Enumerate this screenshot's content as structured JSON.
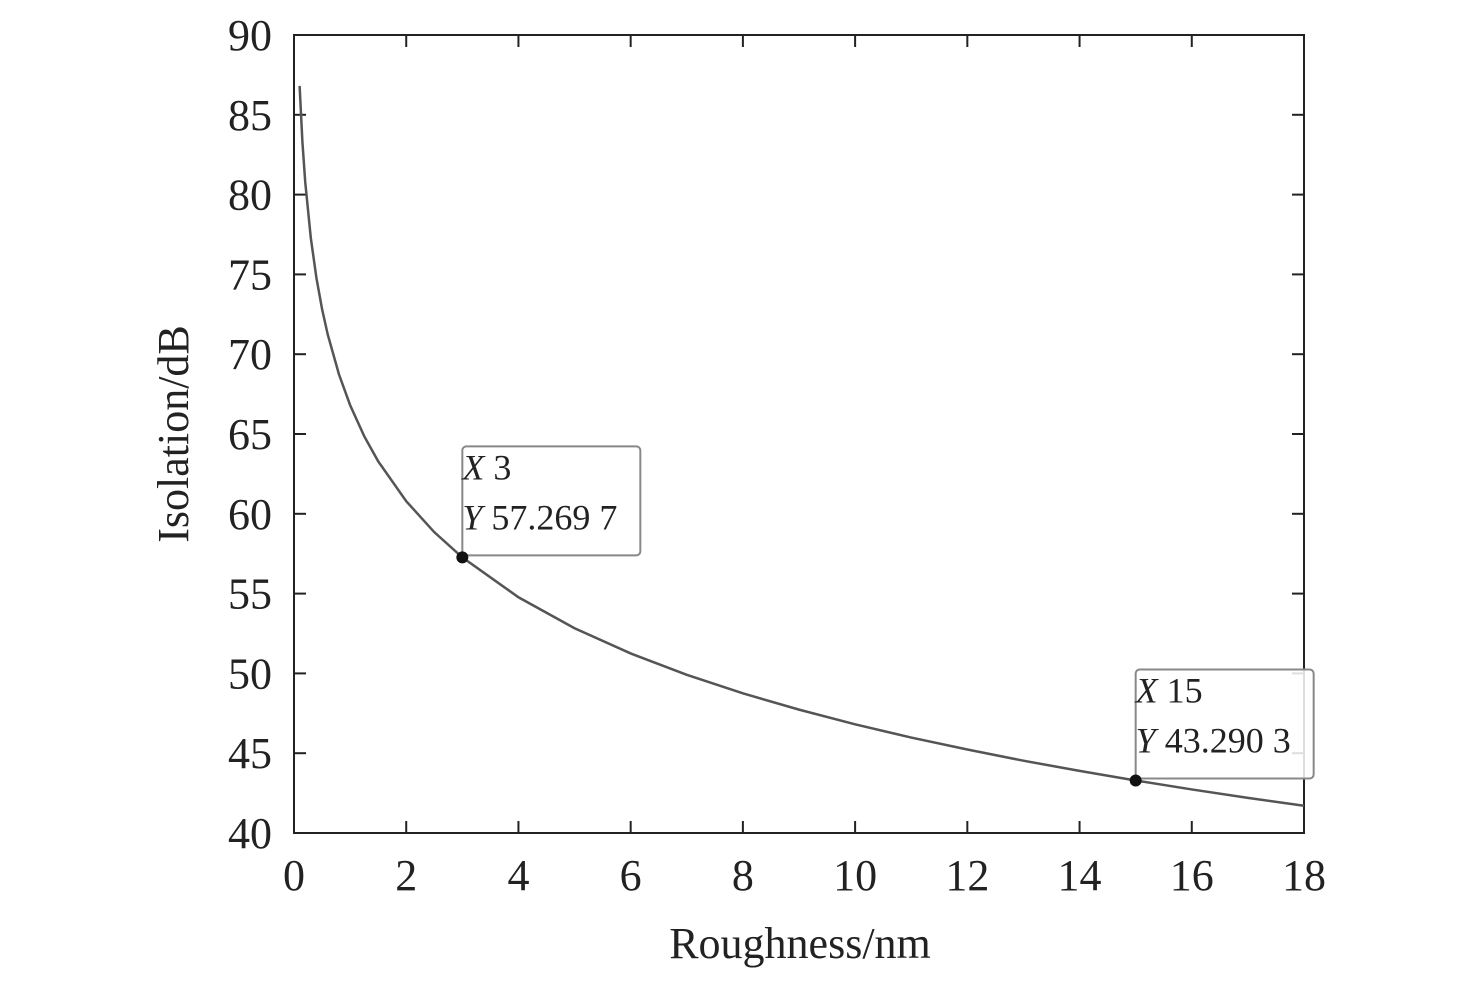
{
  "chart_data": {
    "type": "line",
    "x_label": "Roughness/nm",
    "y_label": "Isolation/dB",
    "series": [
      {
        "color": "#555555",
        "x": [
          0.1,
          0.15,
          0.2,
          0.3,
          0.4,
          0.5,
          0.6,
          0.8,
          1,
          1.25,
          1.5,
          2,
          2.5,
          3,
          4,
          5,
          6,
          7,
          8,
          9,
          10,
          11,
          12,
          13,
          14,
          15,
          16,
          17,
          18
        ],
        "values": [
          86.81,
          83.29,
          80.79,
          77.27,
          74.77,
          72.83,
          71.25,
          68.75,
          66.81,
          64.87,
          63.29,
          60.79,
          58.85,
          57.2697,
          54.77,
          52.83,
          51.25,
          49.91,
          48.75,
          47.73,
          46.81,
          45.98,
          45.23,
          44.53,
          43.89,
          43.2903,
          42.73,
          42.2,
          41.71
        ]
      }
    ],
    "annotations": [
      {
        "x": 3,
        "y": 57.2697,
        "lines": [
          {
            "name": "X",
            "text": "3"
          },
          {
            "name": "Y",
            "text": "57.269 7"
          }
        ]
      },
      {
        "x": 15,
        "y": 43.2903,
        "lines": [
          {
            "name": "X",
            "text": "15"
          },
          {
            "name": "Y",
            "text": "43.290 3"
          }
        ]
      }
    ],
    "xlim": [
      0,
      18
    ],
    "xticks": [
      0,
      2,
      4,
      6,
      8,
      10,
      12,
      14,
      16,
      18
    ],
    "ylim": [
      40,
      90
    ],
    "yticks": [
      40,
      45,
      50,
      55,
      60,
      65,
      70,
      75,
      80,
      85,
      90
    ],
    "grid": false
  }
}
